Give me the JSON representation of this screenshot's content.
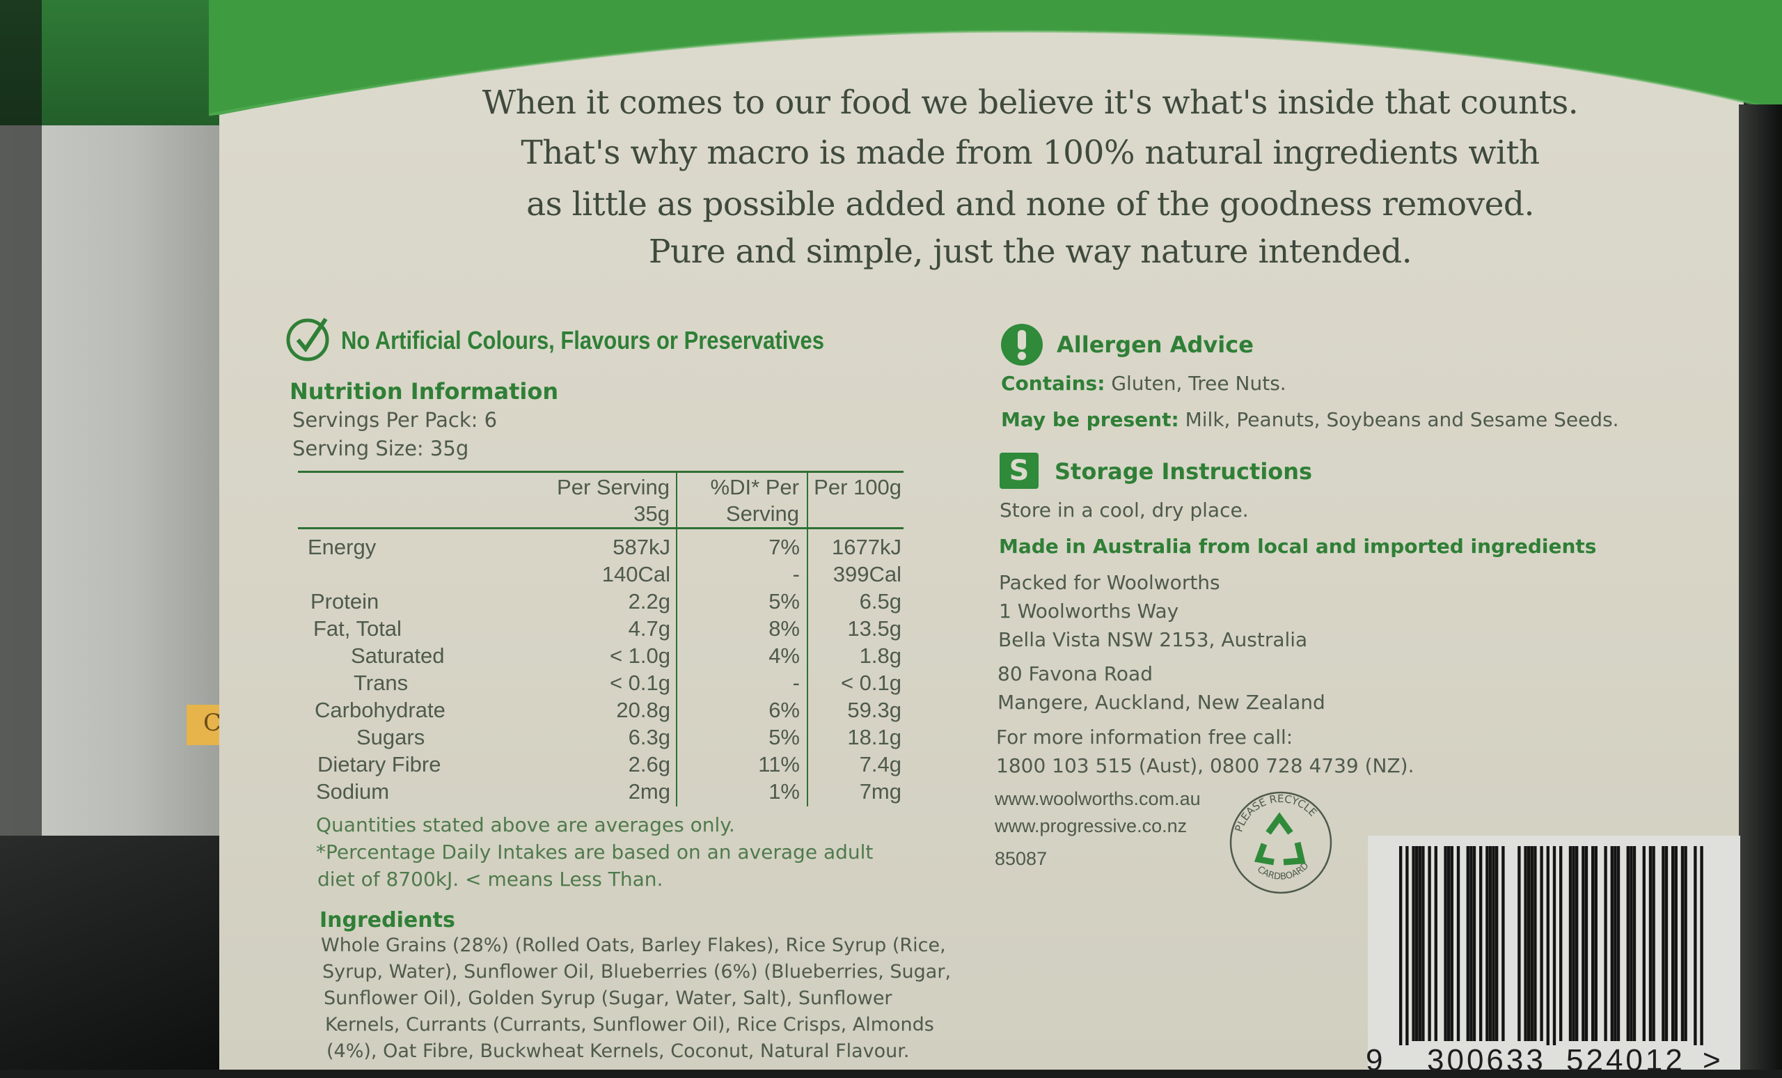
{
  "slogan": [
    "When it comes to our food we believe it's what's inside that counts.",
    "That's why macro is made from 100% natural ingredients with",
    "as little as possible added and none of the goodness removed.",
    "Pure and simple, just the way nature intended."
  ],
  "claim": "No Artificial Colours, Flavours or Preservatives",
  "nutrition": {
    "title": "Nutrition Information",
    "servings_per_pack": "Servings Per Pack: 6",
    "serving_size": "Serving Size: 35g",
    "headers": {
      "per_serving": [
        "Per Serving",
        "35g"
      ],
      "di": [
        "%DI* Per",
        "Serving"
      ],
      "per_100g": [
        "Per 100g"
      ]
    },
    "rows": [
      {
        "name": "Energy",
        "indent": 0,
        "serving": "587kJ",
        "di": "7%",
        "per100": "1677kJ"
      },
      {
        "name": "",
        "indent": 0,
        "serving": "140Cal",
        "di": "-",
        "per100": "399Cal"
      },
      {
        "name": "Protein",
        "indent": 0,
        "serving": "2.2g",
        "di": "5%",
        "per100": "6.5g"
      },
      {
        "name": "Fat, Total",
        "indent": 0,
        "serving": "4.7g",
        "di": "8%",
        "per100": "13.5g"
      },
      {
        "name": "Saturated",
        "indent": 1,
        "serving": "< 1.0g",
        "di": "4%",
        "per100": "1.8g"
      },
      {
        "name": "Trans",
        "indent": 1,
        "serving": "< 0.1g",
        "di": "-",
        "per100": "< 0.1g"
      },
      {
        "name": "Carbohydrate",
        "indent": 0,
        "serving": "20.8g",
        "di": "6%",
        "per100": "59.3g"
      },
      {
        "name": "Sugars",
        "indent": 1,
        "serving": "6.3g",
        "di": "5%",
        "per100": "18.1g"
      },
      {
        "name": "Dietary Fibre",
        "indent": 0,
        "serving": "2.6g",
        "di": "11%",
        "per100": "7.4g"
      },
      {
        "name": "Sodium",
        "indent": 0,
        "serving": "2mg",
        "di": "1%",
        "per100": "7mg"
      }
    ],
    "notes": [
      "Quantities stated above are averages only.",
      "*Percentage Daily Intakes are based on an average adult",
      "diet of 8700kJ. < means Less Than."
    ]
  },
  "ingredients": {
    "title": "Ingredients",
    "lines": [
      "Whole Grains (28%) (Rolled Oats, Barley Flakes), Rice Syrup (Rice,",
      "Syrup, Water), Sunflower Oil, Blueberries (6%) (Blueberries, Sugar,",
      "Sunflower Oil), Golden Syrup (Sugar, Water, Salt), Sunflower",
      "Kernels, Currants (Currants, Sunflower Oil), Rice Crisps, Almonds",
      "(4%), Oat Fibre, Buckwheat Kernels, Coconut, Natural Flavour."
    ]
  },
  "allergen": {
    "title": "Allergen Advice",
    "icon": "exclamation-icon",
    "contains_label": "Contains:",
    "contains": "Gluten, Tree Nuts.",
    "may_label": "May be present:",
    "may": "Milk, Peanuts, Soybeans and Sesame Seeds."
  },
  "storage": {
    "icon_letter": "S",
    "title": "Storage Instructions",
    "text": "Store in a cool, dry place."
  },
  "origin": "Made in Australia from local and imported ingredients",
  "address_au": [
    "Packed for Woolworths",
    "1 Woolworths Way",
    "Bella Vista NSW 2153, Australia"
  ],
  "address_nz": [
    "80 Favona Road",
    "Mangere, Auckland, New Zealand"
  ],
  "contact": [
    "For more information free call:",
    "1800 103 515 (Aust), 0800 728 4739 (NZ)."
  ],
  "websites": [
    "www.woolworths.com.au",
    "www.progressive.co.nz"
  ],
  "product_code": "85087",
  "recycle": {
    "top": "PLEASE RECYCLE",
    "bottom": "CARDBOARD"
  },
  "barcode": {
    "digits": "9300633524012",
    "first": "9",
    "left": "300633",
    "right": "524012",
    "arrow": ">"
  },
  "side_box_label": "Cont",
  "colors": {
    "brand_green": "#2f8a3a",
    "panel": "#d9d6c8",
    "text": "#4e5a4c",
    "band_green": "#3d9a3f"
  }
}
